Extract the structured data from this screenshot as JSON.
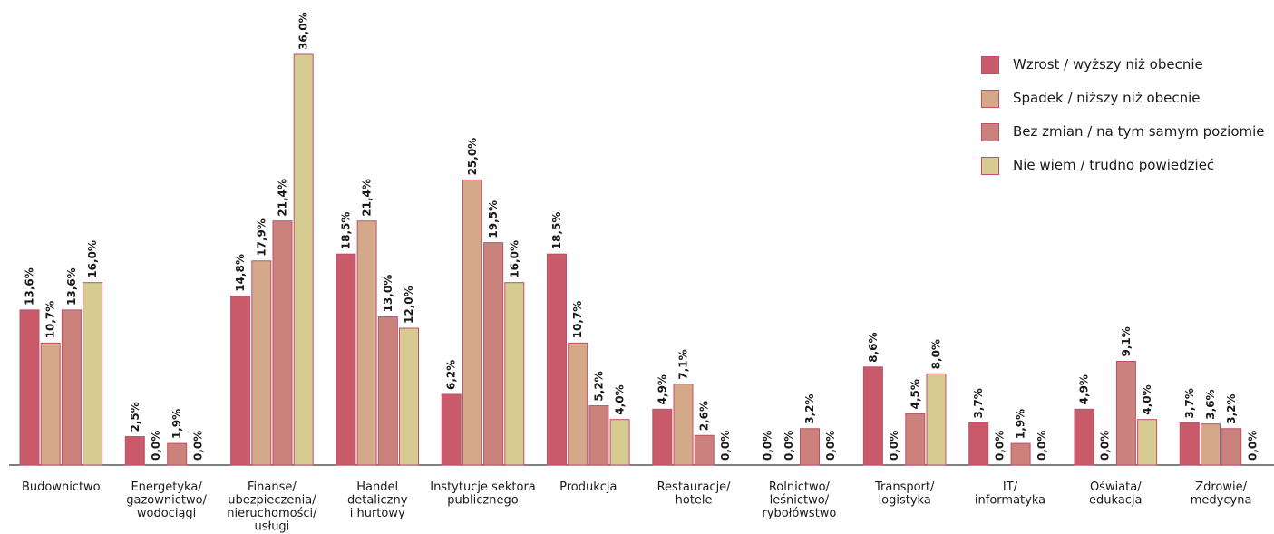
{
  "chart_data": {
    "type": "bar",
    "title": "",
    "xlabel": "",
    "ylabel": "",
    "ylim": [
      0,
      36
    ],
    "grid": false,
    "legend_position": "top-right",
    "categories": [
      [
        "Budownictwo"
      ],
      [
        "Energetyka/",
        "gazownictwo/",
        "wodociągi"
      ],
      [
        "Finanse/",
        "ubezpieczenia/",
        "nieruchomości/",
        "usługi"
      ],
      [
        "Handel",
        "detaliczny",
        "i hurtowy"
      ],
      [
        "Instytucje sektora",
        "publicznego"
      ],
      [
        "Produkcja"
      ],
      [
        "Restauracje/",
        "hotele"
      ],
      [
        "Rolnictwo/",
        "leśnictwo/",
        "rybołówstwo"
      ],
      [
        "Transport/",
        "logistyka"
      ],
      [
        "IT/",
        "informatyka"
      ],
      [
        "Oświata/",
        "edukacja"
      ],
      [
        "Zdrowie/",
        "medycyna"
      ]
    ],
    "series": [
      {
        "name": "Wzrost / wyższy niż obecnie",
        "color": "#c85a6a",
        "values": [
          13.6,
          2.5,
          14.8,
          18.5,
          6.2,
          18.5,
          4.9,
          0.0,
          8.6,
          3.7,
          4.9,
          3.7
        ],
        "labels": [
          "13,6%",
          "2,5%",
          "14,8%",
          "18,5%",
          "6,2%",
          "18,5%",
          "4,9%",
          "0,0%",
          "8,6%",
          "3,7%",
          "4,9%",
          "3,7%"
        ]
      },
      {
        "name": "Spadek / niższy niż obecnie",
        "color": "#d4a98a",
        "values": [
          10.7,
          0.0,
          17.9,
          21.4,
          25.0,
          10.7,
          7.1,
          0.0,
          0.0,
          0.0,
          0.0,
          3.6
        ],
        "labels": [
          "10,7%",
          "0,0%",
          "17,9%",
          "21,4%",
          "25,0%",
          "10,7%",
          "7,1%",
          "0,0%",
          "0,0%",
          "0,0%",
          "0,0%",
          "3,6%"
        ]
      },
      {
        "name": "Bez zmian / na tym samym poziomie",
        "color": "#cc827c",
        "values": [
          13.6,
          1.9,
          21.4,
          13.0,
          19.5,
          5.2,
          2.6,
          3.2,
          4.5,
          1.9,
          9.1,
          3.2
        ],
        "labels": [
          "13,6%",
          "1,9%",
          "21,4%",
          "13,0%",
          "19,5%",
          "5,2%",
          "2,6%",
          "3,2%",
          "4,5%",
          "1,9%",
          "9,1%",
          "3,2%"
        ]
      },
      {
        "name": "Nie wiem / trudno powiedzieć",
        "color": "#d6cb90",
        "values": [
          16.0,
          0.0,
          36.0,
          12.0,
          16.0,
          4.0,
          0.0,
          0.0,
          8.0,
          0.0,
          4.0,
          0.0
        ],
        "labels": [
          "16,0%",
          "0,0%",
          "36,0%",
          "12,0%",
          "16,0%",
          "4,0%",
          "0,0%",
          "0,0%",
          "8,0%",
          "0,0%",
          "4,0%",
          "0,0%"
        ]
      }
    ]
  },
  "colors": {
    "bar_border": "#c0506a",
    "axis": "#333333",
    "text": "#1a1a1a"
  }
}
